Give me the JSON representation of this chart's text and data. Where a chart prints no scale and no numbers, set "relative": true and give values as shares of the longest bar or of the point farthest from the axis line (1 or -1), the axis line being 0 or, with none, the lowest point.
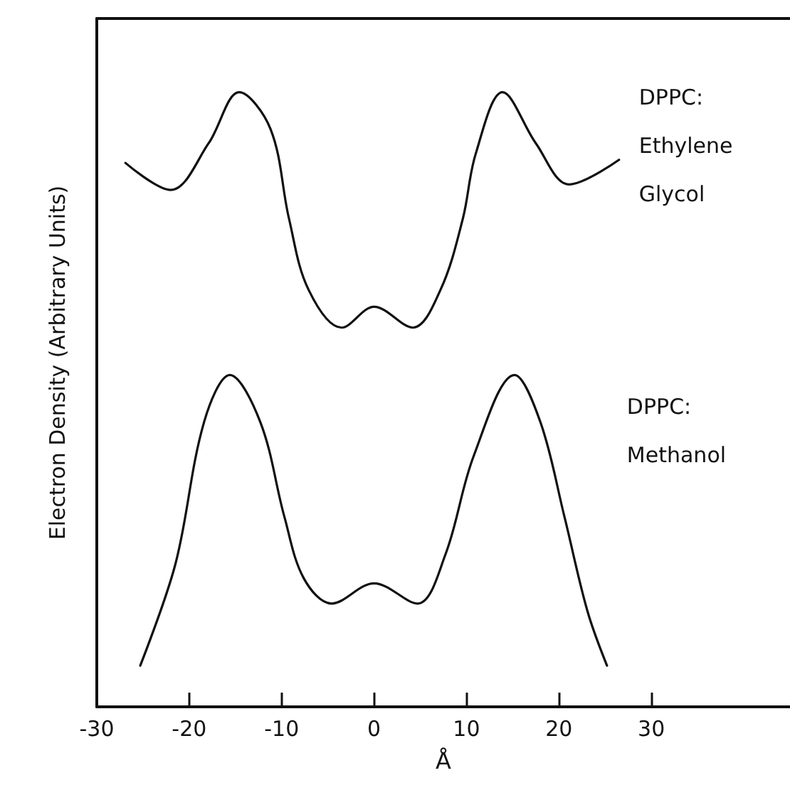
{
  "chart_data": {
    "type": "line",
    "relative": true,
    "xlabel": "Å",
    "ylabel": "Electron Density (Arbitrary Units)",
    "xlim": [
      -30,
      45
    ],
    "xticks": [
      -30,
      -20,
      -10,
      0,
      10,
      20,
      30
    ],
    "grid": false,
    "legend": false,
    "marker": "none",
    "line_style": "solid",
    "series": [
      {
        "name": "DPPC: Ethylene Glycol",
        "color": "#111111",
        "x": [
          -26.9,
          -22.0,
          -17.9,
          -14.6,
          -11.2,
          -9.2,
          -7.1,
          -3.5,
          0,
          4.2,
          7.2,
          9.6,
          11.0,
          13.9,
          17.5,
          21.1,
          26.5
        ],
        "values": [
          0.885,
          0.841,
          0.917,
          1.0,
          0.94,
          0.794,
          0.679,
          0.617,
          0.651,
          0.617,
          0.679,
          0.794,
          0.9,
          1.0,
          0.917,
          0.85,
          0.89
        ]
      },
      {
        "name": "DPPC: Methanol",
        "color": "#111111",
        "x": [
          -25.3,
          -21.5,
          -18.4,
          -15.6,
          -12.3,
          -9.7,
          -7.6,
          -4.6,
          0,
          4.7,
          7.7,
          10.8,
          15.2,
          18.0,
          20.6,
          23.1,
          25.2
        ],
        "values": [
          0.067,
          0.232,
          0.463,
          0.54,
          0.463,
          0.309,
          0.209,
          0.168,
          0.201,
          0.168,
          0.247,
          0.409,
          0.54,
          0.463,
          0.309,
          0.155,
          0.067
        ]
      }
    ]
  }
}
